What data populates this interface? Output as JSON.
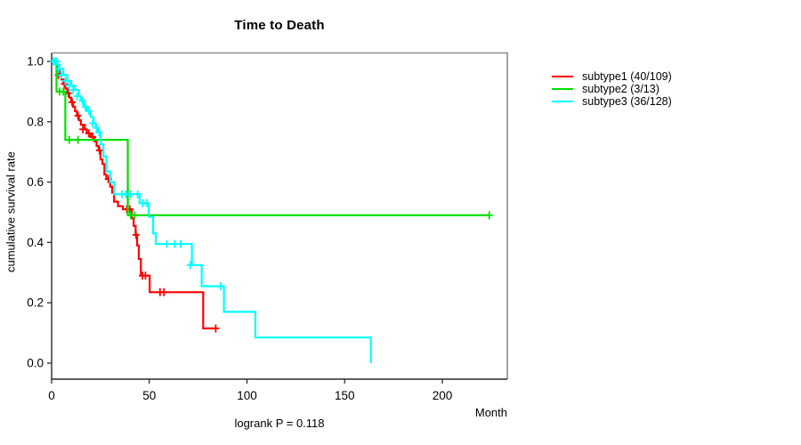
{
  "title": "Time to Death",
  "ylabel": "cumulative survival rate",
  "xlabel": "Month",
  "annotation": "logrank P = 0.118",
  "legend": {
    "items": [
      {
        "label": "subtype1 (40/109)",
        "color": "#FF0000"
      },
      {
        "label": "subtype2 (3/13)",
        "color": "#00E000"
      },
      {
        "label": "subtype3 (36/128)",
        "color": "#00FFFF"
      }
    ]
  },
  "chart_data": {
    "type": "line",
    "subtype": "kaplan-meier-step",
    "title": "Time to Death",
    "xlabel": "Month",
    "ylabel": "cumulative survival rate",
    "annotation": "logrank P = 0.118",
    "grid": false,
    "legend_position": "right-outside",
    "xlim": [
      0,
      233
    ],
    "ylim": [
      0.0,
      1.0
    ],
    "x_ticks": {
      "values": [
        0,
        50,
        100,
        150,
        200
      ],
      "labels": [
        "0",
        "50",
        "100",
        "150",
        "200"
      ]
    },
    "y_ticks": {
      "values": [
        0.0,
        0.2,
        0.4,
        0.6,
        0.8,
        1.0
      ],
      "labels": [
        "0.0",
        "0.2",
        "0.4",
        "0.6",
        "0.8",
        "1.0"
      ]
    },
    "axis_color": "#2b2b2b",
    "box_color": "#8c8c8c",
    "series": [
      {
        "name": "subtype1",
        "label": "subtype1 (40/109)",
        "n": 109,
        "events": 40,
        "color": "#FF0000",
        "end_time": 84,
        "steps": [
          [
            0,
            1.0
          ],
          [
            2,
            0.99
          ],
          [
            3,
            0.97
          ],
          [
            4,
            0.955
          ],
          [
            5,
            0.94
          ],
          [
            6,
            0.925
          ],
          [
            7,
            0.91
          ],
          [
            8,
            0.895
          ],
          [
            9,
            0.88
          ],
          [
            10,
            0.865
          ],
          [
            11,
            0.85
          ],
          [
            12,
            0.835
          ],
          [
            13,
            0.82
          ],
          [
            14,
            0.805
          ],
          [
            15,
            0.79
          ],
          [
            17,
            0.775
          ],
          [
            18,
            0.762
          ],
          [
            20,
            0.75
          ],
          [
            22,
            0.735
          ],
          [
            23,
            0.72
          ],
          [
            24,
            0.705
          ],
          [
            25,
            0.675
          ],
          [
            26,
            0.66
          ],
          [
            27,
            0.625
          ],
          [
            28,
            0.61
          ],
          [
            30,
            0.585
          ],
          [
            31,
            0.565
          ],
          [
            32,
            0.535
          ],
          [
            34,
            0.52
          ],
          [
            36.5,
            0.51
          ],
          [
            41,
            0.48
          ],
          [
            42,
            0.455
          ],
          [
            43,
            0.425
          ],
          [
            43.8,
            0.39
          ],
          [
            44.6,
            0.345
          ],
          [
            45.7,
            0.29
          ],
          [
            50.2,
            0.235
          ],
          [
            77.6,
            0.115
          ]
        ],
        "censors": [
          [
            1.5,
            1.0
          ],
          [
            3.5,
            0.955
          ],
          [
            6.5,
            0.925
          ],
          [
            8.5,
            0.895
          ],
          [
            10.5,
            0.865
          ],
          [
            13.5,
            0.82
          ],
          [
            16,
            0.775
          ],
          [
            19,
            0.762
          ],
          [
            21,
            0.75
          ],
          [
            24.5,
            0.705
          ],
          [
            29,
            0.61
          ],
          [
            38.5,
            0.51
          ],
          [
            40,
            0.51
          ],
          [
            43.2,
            0.425
          ],
          [
            46.5,
            0.29
          ],
          [
            48,
            0.29
          ],
          [
            55.5,
            0.235
          ],
          [
            57.5,
            0.235
          ],
          [
            84,
            0.115
          ]
        ]
      },
      {
        "name": "subtype2",
        "label": "subtype2 (3/13)",
        "n": 13,
        "events": 3,
        "color": "#00E000",
        "end_time": 224,
        "steps": [
          [
            0,
            1.0
          ],
          [
            2.5,
            0.9
          ],
          [
            7,
            0.74
          ],
          [
            39,
            0.49
          ]
        ],
        "censors": [
          [
            4,
            0.9
          ],
          [
            6,
            0.9
          ],
          [
            9,
            0.74
          ],
          [
            13.5,
            0.74
          ],
          [
            40.5,
            0.49
          ],
          [
            42.5,
            0.49
          ],
          [
            224,
            0.49
          ]
        ]
      },
      {
        "name": "subtype3",
        "label": "subtype3 (36/128)",
        "n": 128,
        "events": 36,
        "color": "#00FFFF",
        "end_time": 163.4,
        "steps": [
          [
            0,
            1.0
          ],
          [
            2,
            0.99
          ],
          [
            4,
            0.975
          ],
          [
            6,
            0.955
          ],
          [
            8,
            0.935
          ],
          [
            10,
            0.92
          ],
          [
            12,
            0.905
          ],
          [
            14,
            0.885
          ],
          [
            15,
            0.87
          ],
          [
            16.5,
            0.85
          ],
          [
            18,
            0.835
          ],
          [
            20,
            0.815
          ],
          [
            21.5,
            0.795
          ],
          [
            22.5,
            0.78
          ],
          [
            23.5,
            0.765
          ],
          [
            25,
            0.725
          ],
          [
            26.5,
            0.685
          ],
          [
            28,
            0.635
          ],
          [
            30,
            0.6
          ],
          [
            32,
            0.56
          ],
          [
            45,
            0.53
          ],
          [
            49.7,
            0.485
          ],
          [
            52,
            0.43
          ],
          [
            53.3,
            0.395
          ],
          [
            71.8,
            0.325
          ],
          [
            76.8,
            0.255
          ],
          [
            88.2,
            0.17
          ],
          [
            104.3,
            0.085
          ],
          [
            163.4,
            0.0
          ]
        ],
        "censors": [
          [
            1,
            1.0
          ],
          [
            1.8,
            1.0
          ],
          [
            2.8,
            1.0
          ],
          [
            3.5,
            0.975
          ],
          [
            5,
            0.955
          ],
          [
            7,
            0.935
          ],
          [
            9,
            0.92
          ],
          [
            11,
            0.905
          ],
          [
            13,
            0.885
          ],
          [
            15.7,
            0.87
          ],
          [
            17.3,
            0.85
          ],
          [
            19,
            0.835
          ],
          [
            21,
            0.795
          ],
          [
            23,
            0.78
          ],
          [
            24.3,
            0.765
          ],
          [
            36,
            0.56
          ],
          [
            38,
            0.56
          ],
          [
            40.5,
            0.56
          ],
          [
            44,
            0.56
          ],
          [
            46.5,
            0.53
          ],
          [
            48.5,
            0.53
          ],
          [
            59,
            0.395
          ],
          [
            63,
            0.395
          ],
          [
            66,
            0.395
          ],
          [
            71,
            0.325
          ],
          [
            86.5,
            0.255
          ]
        ]
      }
    ]
  }
}
